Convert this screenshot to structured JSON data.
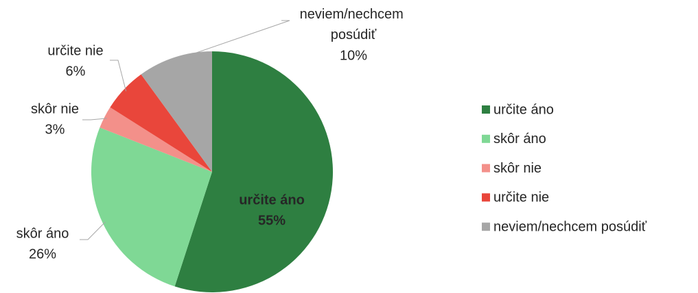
{
  "chart_data": {
    "type": "pie",
    "categories": [
      "určite áno",
      "skôr áno",
      "skôr nie",
      "určite nie",
      "neviem/nechcem posúdiť"
    ],
    "values": [
      55,
      26,
      3,
      6,
      10
    ],
    "value_labels": [
      "55%",
      "26%",
      "3%",
      "6%",
      "10%"
    ],
    "colors": [
      "#2e7f41",
      "#7fd895",
      "#f3908a",
      "#e9463b",
      "#a6a6a6"
    ],
    "legend": "right"
  }
}
